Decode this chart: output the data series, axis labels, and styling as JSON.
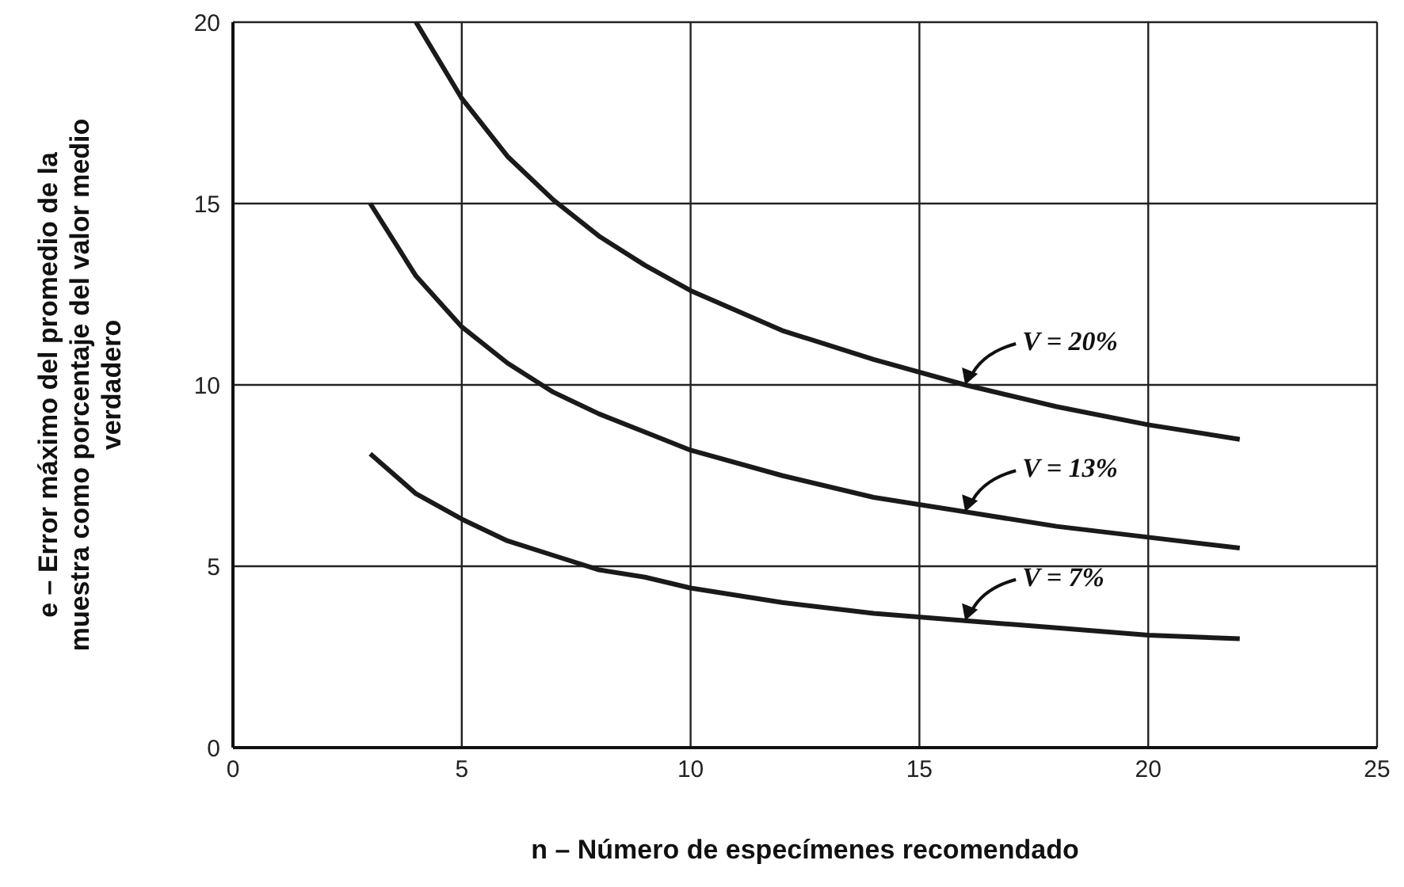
{
  "chart_data": {
    "type": "line",
    "xlabel": "n – Número de especímenes recomendado",
    "ylabel": "e – Error máximo del promedio de la muestra como porcentaje del valor medio verdadero",
    "xlim": [
      0,
      25
    ],
    "xticks": [
      0,
      5,
      10,
      15,
      20,
      25
    ],
    "ylim": [
      0,
      20
    ],
    "yticks": [
      0,
      5,
      10,
      15,
      20
    ],
    "grid": true,
    "legend": false,
    "marker": "none",
    "line_style": "solid",
    "series": [
      {
        "color": "#1a1a1a",
        "x": [
          4,
          5,
          6,
          7,
          8,
          9,
          10,
          12,
          14,
          16,
          18,
          20,
          22
        ],
        "values": [
          20,
          17.9,
          16.3,
          15.1,
          14.1,
          13.3,
          12.6,
          11.5,
          10.7,
          10,
          9.4,
          8.9,
          8.5
        ]
      },
      {
        "color": "#1a1a1a",
        "x": [
          3,
          4,
          5,
          6,
          7,
          8,
          9,
          10,
          12,
          14,
          16,
          18,
          20,
          22
        ],
        "values": [
          15,
          13,
          11.6,
          10.6,
          9.8,
          9.2,
          8.7,
          8.2,
          7.5,
          6.9,
          6.5,
          6.1,
          5.8,
          5.5
        ]
      },
      {
        "color": "#1a1a1a",
        "x": [
          3,
          4,
          5,
          6,
          7,
          8,
          9,
          10,
          12,
          14,
          16,
          18,
          20,
          22
        ],
        "values": [
          8.1,
          7,
          6.3,
          5.7,
          5.3,
          4.9,
          4.7,
          4.4,
          4,
          3.7,
          3.5,
          3.3,
          3.1,
          3
        ]
      }
    ],
    "annotations": [
      "V = 20%",
      "V = 13%",
      "V = 7%"
    ]
  }
}
